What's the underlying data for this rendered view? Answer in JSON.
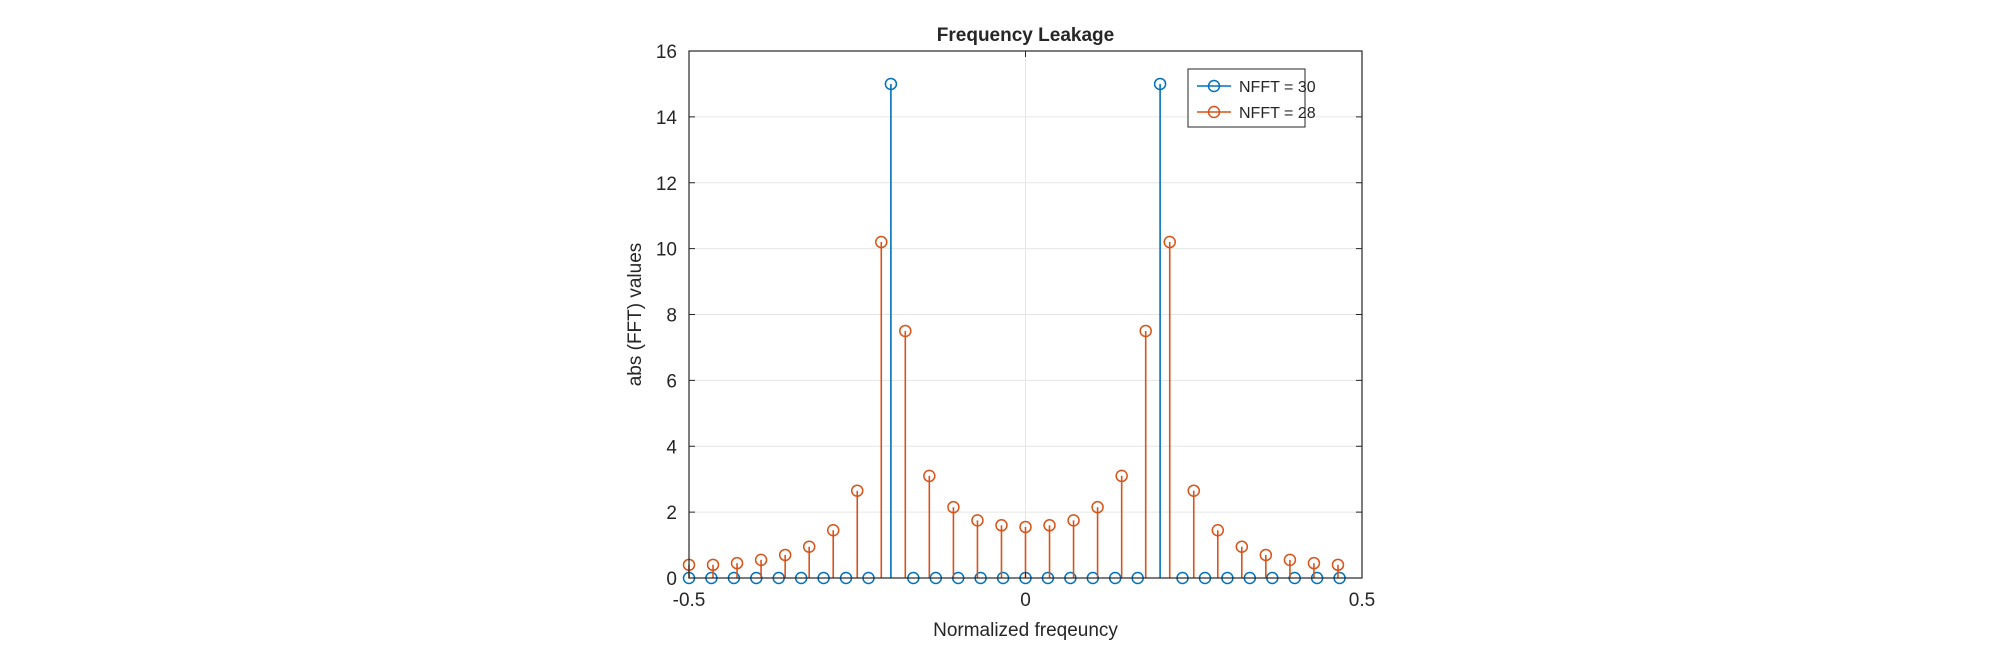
{
  "chart_data": {
    "type": "stem",
    "title": "Frequency Leakage",
    "xlabel": "Normalized freqeuncy",
    "ylabel": "abs (FFT) values",
    "xlim": [
      -0.5,
      0.5
    ],
    "ylim": [
      0,
      16
    ],
    "xticks": [
      -0.5,
      0,
      0.5
    ],
    "xtick_labels": [
      "-0.5",
      "0",
      "0.5"
    ],
    "yticks": [
      0,
      2,
      4,
      6,
      8,
      10,
      12,
      14,
      16
    ],
    "ytick_labels": [
      "0",
      "2",
      "4",
      "6",
      "8",
      "10",
      "12",
      "14",
      "16"
    ],
    "grid": true,
    "legend_position": "top-right",
    "series": [
      {
        "name": "NFFT = 30",
        "color": "#0072bd",
        "x": [
          -0.5,
          -0.4667,
          -0.4333,
          -0.4,
          -0.3667,
          -0.3333,
          -0.3,
          -0.2667,
          -0.2333,
          -0.2,
          -0.1667,
          -0.1333,
          -0.1,
          -0.0667,
          -0.0333,
          0,
          0.0333,
          0.0667,
          0.1,
          0.1333,
          0.1667,
          0.2,
          0.2333,
          0.2667,
          0.3,
          0.3333,
          0.3667,
          0.4,
          0.4333,
          0.4667
        ],
        "values": [
          0,
          0,
          0,
          0,
          0,
          0,
          0,
          0,
          0,
          15,
          0,
          0,
          0,
          0,
          0,
          0,
          0,
          0,
          0,
          0,
          0,
          15,
          0,
          0,
          0,
          0,
          0,
          0,
          0,
          0
        ]
      },
      {
        "name": "NFFT = 28",
        "color": "#d95319",
        "x": [
          -0.5,
          -0.4643,
          -0.4286,
          -0.3929,
          -0.3571,
          -0.3214,
          -0.2857,
          -0.25,
          -0.2143,
          -0.1786,
          -0.1429,
          -0.1071,
          -0.0714,
          -0.0357,
          0,
          0.0357,
          0.0714,
          0.1071,
          0.1429,
          0.1786,
          0.2143,
          0.25,
          0.2857,
          0.3214,
          0.3571,
          0.3929,
          0.4286,
          0.4643
        ],
        "values": [
          0.4,
          0.4,
          0.45,
          0.55,
          0.7,
          0.95,
          1.45,
          2.65,
          10.2,
          7.5,
          3.1,
          2.15,
          1.75,
          1.6,
          1.55,
          1.6,
          1.75,
          2.15,
          3.1,
          7.5,
          10.2,
          2.65,
          1.45,
          0.95,
          0.7,
          0.55,
          0.45,
          0.4
        ]
      }
    ]
  }
}
